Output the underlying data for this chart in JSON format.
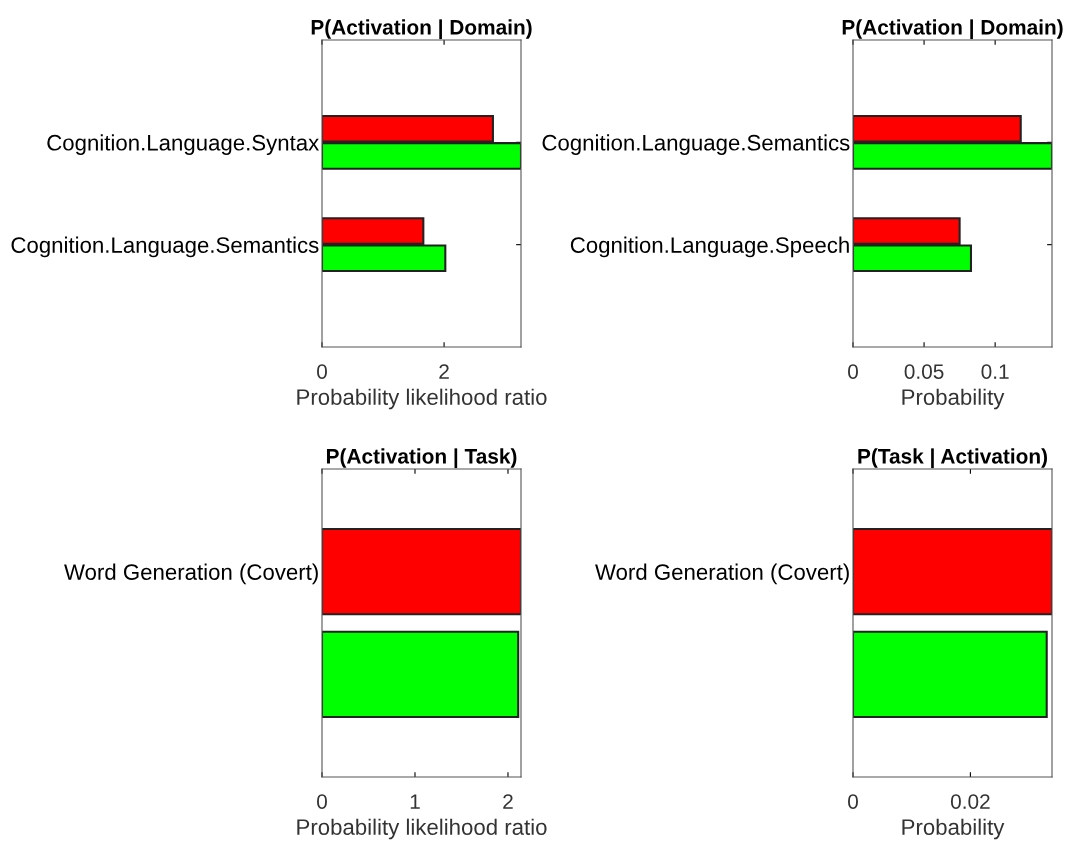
{
  "chart_data": [
    {
      "type": "bar",
      "orientation": "horizontal",
      "title": "P(Activation | Domain)",
      "xlabel": "Probability likelihood ratio",
      "categories": [
        "Cognition.Language.Syntax",
        "Cognition.Language.Semantics"
      ],
      "series": [
        {
          "color": "#ff0000",
          "values": [
            2.8,
            1.66
          ]
        },
        {
          "color": "#00ff00",
          "values": [
            3.26,
            2.02
          ]
        }
      ],
      "xlim": [
        0,
        3.26
      ],
      "xticks": [
        0,
        2
      ]
    },
    {
      "type": "bar",
      "orientation": "horizontal",
      "title": "P(Activation | Domain)",
      "xlabel": "Probability",
      "categories": [
        "Cognition.Language.Semantics",
        "Cognition.Language.Speech"
      ],
      "series": [
        {
          "color": "#ff0000",
          "values": [
            0.118,
            0.075
          ]
        },
        {
          "color": "#00ff00",
          "values": [
            0.14,
            0.083
          ]
        }
      ],
      "xlim": [
        0,
        0.14
      ],
      "xticks": [
        0,
        0.05,
        0.1
      ]
    },
    {
      "type": "bar",
      "orientation": "horizontal",
      "title": "P(Activation | Task)",
      "xlabel": "Probability likelihood ratio",
      "categories": [
        "Word Generation (Covert)"
      ],
      "series": [
        {
          "color": "#ff0000",
          "values": [
            2.14
          ]
        },
        {
          "color": "#00ff00",
          "values": [
            2.11
          ]
        }
      ],
      "xlim": [
        0,
        2.14
      ],
      "xticks": [
        0,
        1,
        2
      ]
    },
    {
      "type": "bar",
      "orientation": "horizontal",
      "title": "P(Task | Activation)",
      "xlabel": "Probability",
      "categories": [
        "Word Generation (Covert)"
      ],
      "series": [
        {
          "color": "#ff0000",
          "values": [
            0.0339
          ]
        },
        {
          "color": "#00ff00",
          "values": [
            0.033
          ]
        }
      ],
      "xlim": [
        0,
        0.0339
      ],
      "xticks": [
        0,
        0.02
      ]
    }
  ]
}
